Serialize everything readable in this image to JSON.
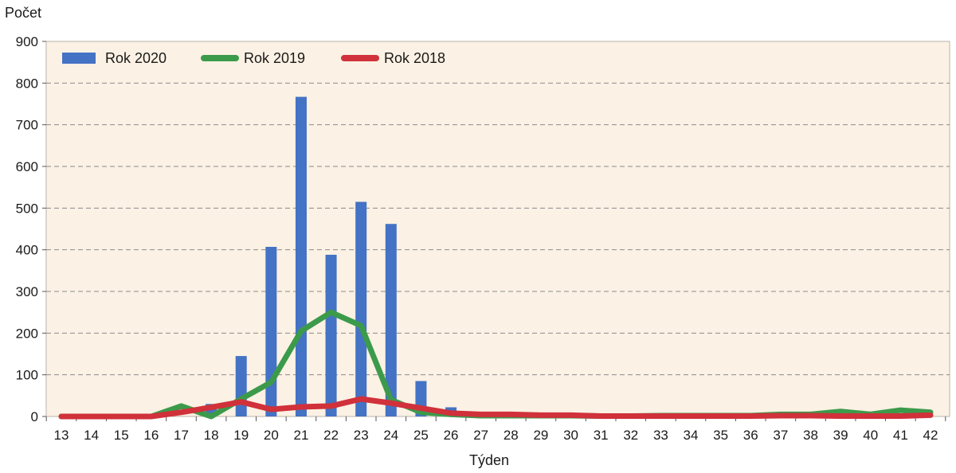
{
  "chart_data": {
    "type": "bar",
    "ylabel": "Počet",
    "xlabel": "Týden",
    "ylim": [
      0,
      900
    ],
    "yticks": [
      "0",
      "100",
      "200",
      "300",
      "400",
      "500",
      "600",
      "700",
      "800",
      "900"
    ],
    "grid": true,
    "legend_position": "top-left",
    "categories": [
      "13",
      "14",
      "15",
      "16",
      "17",
      "18",
      "19",
      "20",
      "21",
      "22",
      "23",
      "24",
      "25",
      "26",
      "27",
      "28",
      "29",
      "30",
      "31",
      "32",
      "33",
      "34",
      "35",
      "36",
      "37",
      "38",
      "39",
      "40",
      "41",
      "42"
    ],
    "series": [
      {
        "name": "Rok 2020",
        "type": "bar",
        "color": "#4472c4",
        "values": [
          0,
          0,
          0,
          0,
          0,
          30,
          145,
          407,
          767,
          388,
          515,
          462,
          85,
          22,
          0,
          0,
          0,
          0,
          0,
          0,
          0,
          0,
          0,
          0,
          0,
          0,
          0,
          0,
          0,
          0
        ]
      },
      {
        "name": "Rok 2019",
        "type": "line",
        "color": "#3c9a4b",
        "values": [
          0,
          0,
          0,
          0,
          25,
          0,
          42,
          82,
          205,
          250,
          218,
          40,
          10,
          5,
          2,
          2,
          2,
          2,
          1,
          1,
          2,
          2,
          2,
          2,
          5,
          5,
          12,
          5,
          15,
          10
        ]
      },
      {
        "name": "Rok 2018",
        "type": "line",
        "color": "#d0313a",
        "values": [
          0,
          0,
          0,
          0,
          10,
          22,
          35,
          17,
          23,
          25,
          42,
          32,
          20,
          8,
          5,
          5,
          3,
          3,
          1,
          1,
          1,
          1,
          1,
          1,
          2,
          2,
          1,
          1,
          1,
          3
        ]
      }
    ]
  }
}
